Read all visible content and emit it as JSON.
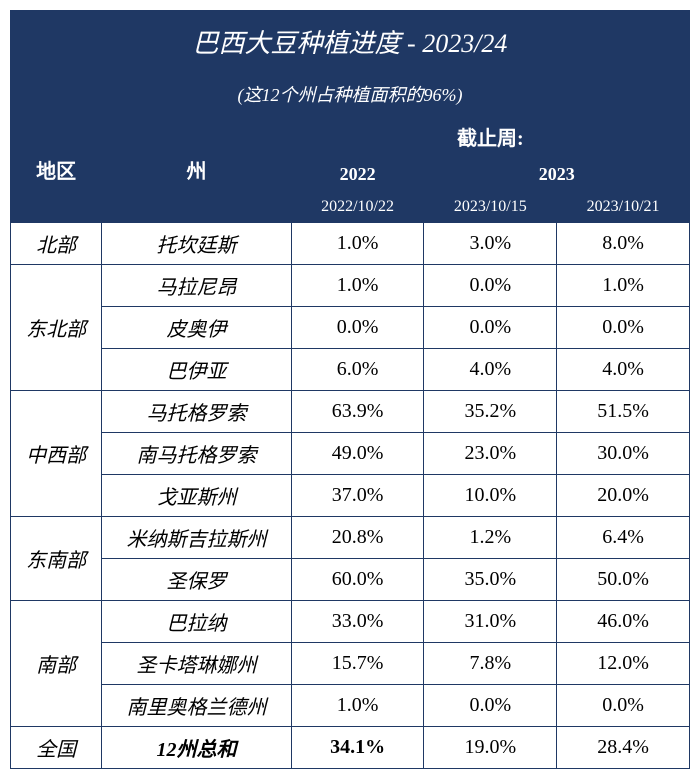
{
  "colors": {
    "header_bg": "#1f3864",
    "header_text": "#ffffff",
    "border": "#1f3864",
    "body_text": "#000000",
    "background": "#ffffff"
  },
  "title": "巴西大豆种植进度 - 2023/24",
  "subtitle": "(这12个州占种植面积的96%)",
  "headers": {
    "region": "地区",
    "state": "州",
    "week_ending": "截止周:",
    "year_2022": "2022",
    "year_2023": "2023",
    "date_1": "2022/10/22",
    "date_2": "2023/10/15",
    "date_3": "2023/10/21"
  },
  "regions": [
    {
      "name": "北部",
      "states": [
        {
          "name": "托坎廷斯",
          "v1": "1.0%",
          "v2": "3.0%",
          "v3": "8.0%"
        }
      ]
    },
    {
      "name": "东北部",
      "states": [
        {
          "name": "马拉尼昂",
          "v1": "1.0%",
          "v2": "0.0%",
          "v3": "1.0%"
        },
        {
          "name": "皮奥伊",
          "v1": "0.0%",
          "v2": "0.0%",
          "v3": "0.0%"
        },
        {
          "name": "巴伊亚",
          "v1": "6.0%",
          "v2": "4.0%",
          "v3": "4.0%"
        }
      ]
    },
    {
      "name": "中西部",
      "states": [
        {
          "name": "马托格罗索",
          "v1": "63.9%",
          "v2": "35.2%",
          "v3": "51.5%"
        },
        {
          "name": "南马托格罗索",
          "v1": "49.0%",
          "v2": "23.0%",
          "v3": "30.0%"
        },
        {
          "name": "戈亚斯州",
          "v1": "37.0%",
          "v2": "10.0%",
          "v3": "20.0%"
        }
      ]
    },
    {
      "name": "东南部",
      "states": [
        {
          "name": "米纳斯吉拉斯州",
          "v1": "20.8%",
          "v2": "1.2%",
          "v3": "6.4%"
        },
        {
          "name": "圣保罗",
          "v1": "60.0%",
          "v2": "35.0%",
          "v3": "50.0%"
        }
      ]
    },
    {
      "name": "南部",
      "states": [
        {
          "name": "巴拉纳",
          "v1": "33.0%",
          "v2": "31.0%",
          "v3": "46.0%"
        },
        {
          "name": "圣卡塔琳娜州",
          "v1": "15.7%",
          "v2": "7.8%",
          "v3": "12.0%"
        },
        {
          "name": "南里奥格兰德州",
          "v1": "1.0%",
          "v2": "0.0%",
          "v3": "0.0%"
        }
      ]
    }
  ],
  "total": {
    "region": "全国",
    "state": "12州总和",
    "v1": "34.1%",
    "v2": "19.0%",
    "v3": "28.4%"
  }
}
